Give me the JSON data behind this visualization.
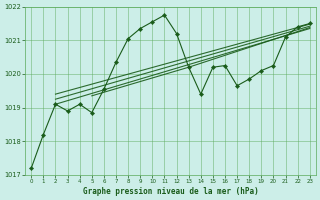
{
  "title": "Graphe pression niveau de la mer (hPa)",
  "bg_color": "#cceee8",
  "grid_color": "#5aaa5a",
  "line_color": "#1a5c1a",
  "xlim": [
    -0.5,
    23.5
  ],
  "ylim": [
    1017,
    1022
  ],
  "yticks": [
    1017,
    1018,
    1019,
    1020,
    1021,
    1022
  ],
  "xticks": [
    0,
    1,
    2,
    3,
    4,
    5,
    6,
    7,
    8,
    9,
    10,
    11,
    12,
    13,
    14,
    15,
    16,
    17,
    18,
    19,
    20,
    21,
    22,
    23
  ],
  "main_series": {
    "x": [
      0,
      1,
      2,
      3,
      4,
      5,
      6,
      7,
      8,
      9,
      10,
      11,
      12,
      13,
      14,
      15,
      16,
      17,
      18,
      19,
      20,
      21,
      22,
      23
    ],
    "y": [
      1017.2,
      1018.2,
      1019.1,
      1018.9,
      1019.1,
      1018.85,
      1019.55,
      1020.35,
      1021.05,
      1021.35,
      1021.55,
      1021.75,
      1021.2,
      1020.2,
      1019.4,
      1020.2,
      1020.25,
      1019.65,
      1019.85,
      1020.1,
      1020.25,
      1021.1,
      1021.4,
      1021.5
    ]
  },
  "trend_lines": [
    {
      "x": [
        2,
        23
      ],
      "y": [
        1019.1,
        1021.35
      ]
    },
    {
      "x": [
        2,
        23
      ],
      "y": [
        1019.25,
        1021.42
      ]
    },
    {
      "x": [
        2,
        23
      ],
      "y": [
        1019.4,
        1021.48
      ]
    },
    {
      "x": [
        5,
        13,
        23
      ],
      "y": [
        1019.35,
        1020.2,
        1021.38
      ]
    }
  ]
}
